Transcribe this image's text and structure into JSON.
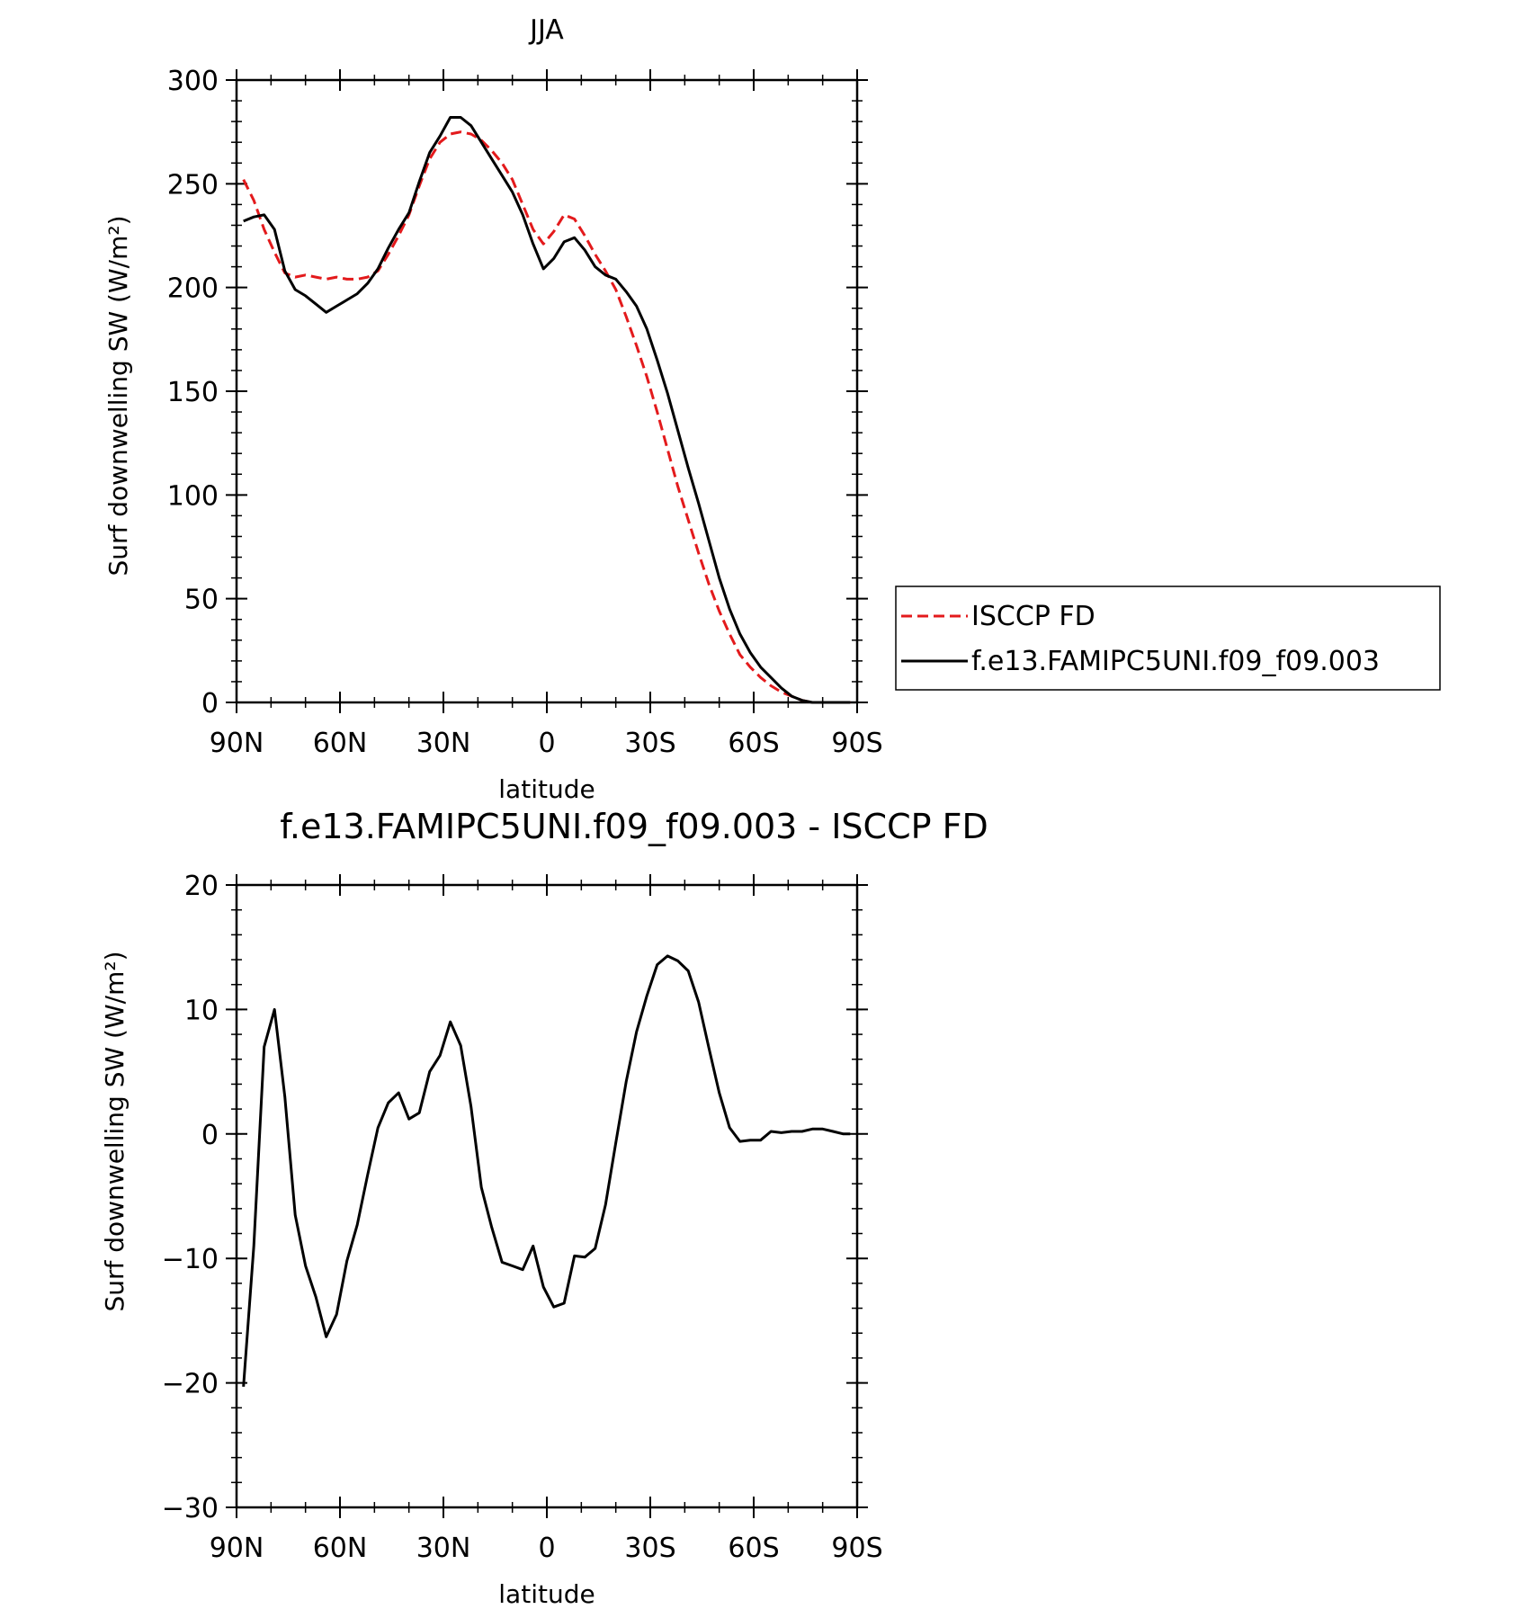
{
  "chart_data": [
    {
      "type": "line",
      "title": "JJA",
      "xlabel": "latitude",
      "ylabel": "Surf downwelling SW (W/m²)",
      "x_ticks": [
        90,
        60,
        30,
        0,
        -30,
        -60,
        -90
      ],
      "x_tick_labels": [
        "90N",
        "60N",
        "30N",
        "0",
        "30S",
        "60S",
        "90S"
      ],
      "xlim": [
        90,
        -90
      ],
      "ylim": [
        0,
        300
      ],
      "y_ticks": [
        0,
        50,
        100,
        150,
        200,
        250,
        300
      ],
      "y_tick_labels": [
        "0",
        "50",
        "100",
        "150",
        "200",
        "250",
        "300"
      ],
      "grid": false,
      "legend_position": "right",
      "series": [
        {
          "name": "ISCCP FD",
          "color": "#e31a1c",
          "dash": "dashed",
          "x": [
            88,
            85,
            82,
            79,
            76,
            73,
            70,
            67,
            64,
            61,
            58,
            55,
            52,
            49,
            46,
            43,
            40,
            37,
            34,
            31,
            28,
            25,
            22,
            19,
            16,
            13,
            10,
            7,
            4,
            1,
            -2,
            -5,
            -8,
            -11,
            -14,
            -17,
            -20,
            -23,
            -26,
            -29,
            -32,
            -35,
            -38,
            -41,
            -44,
            -47,
            -50,
            -53,
            -56,
            -59,
            -62,
            -65,
            -68,
            -71,
            -74,
            -77,
            -80,
            -83,
            -86,
            -88
          ],
          "y": [
            252,
            242,
            228,
            217,
            207,
            205,
            206,
            205,
            204,
            205,
            204,
            204,
            205,
            208,
            216,
            225,
            235,
            249,
            262,
            270,
            274,
            275,
            274,
            271,
            266,
            260,
            252,
            240,
            228,
            221,
            227,
            235,
            233,
            225,
            216,
            208,
            199,
            186,
            172,
            157,
            140,
            122,
            104,
            88,
            72,
            57,
            44,
            33,
            23,
            17,
            12,
            8,
            5,
            3,
            1,
            0,
            0,
            0,
            0,
            0
          ]
        },
        {
          "name": "f.e13.FAMIPC5UNI.f09_f09.003",
          "color": "#000000",
          "dash": "solid",
          "x": [
            88,
            85,
            82,
            79,
            76,
            73,
            70,
            67,
            64,
            61,
            58,
            55,
            52,
            49,
            46,
            43,
            40,
            37,
            34,
            31,
            28,
            25,
            22,
            19,
            16,
            13,
            10,
            7,
            4,
            1,
            -2,
            -5,
            -8,
            -11,
            -14,
            -17,
            -20,
            -23,
            -26,
            -29,
            -32,
            -35,
            -38,
            -41,
            -44,
            -47,
            -50,
            -53,
            -56,
            -59,
            -62,
            -65,
            -68,
            -71,
            -74,
            -77,
            -80,
            -83,
            -86,
            -88
          ],
          "y": [
            232,
            234,
            235,
            228,
            208,
            199,
            196,
            192,
            188,
            191,
            194,
            197,
            202,
            209,
            219,
            228,
            236,
            251,
            265,
            273,
            282,
            282,
            278,
            270,
            262,
            254,
            246,
            235,
            221,
            209,
            214,
            222,
            224,
            218,
            210,
            206,
            204,
            198,
            191,
            180,
            165,
            149,
            131,
            113,
            96,
            78,
            60,
            45,
            33,
            24,
            17,
            12,
            7,
            3,
            1,
            0,
            0,
            0,
            0,
            0
          ]
        }
      ]
    },
    {
      "type": "line",
      "title": "f.e13.FAMIPC5UNI.f09_f09.003 - ISCCP FD",
      "xlabel": "latitude",
      "ylabel": "Surf downwelling SW (W/m²)",
      "x_ticks": [
        90,
        60,
        30,
        0,
        -30,
        -60,
        -90
      ],
      "x_tick_labels": [
        "90N",
        "60N",
        "30N",
        "0",
        "30S",
        "60S",
        "90S"
      ],
      "xlim": [
        90,
        -90
      ],
      "ylim": [
        -30,
        20
      ],
      "y_ticks": [
        -30,
        -20,
        -10,
        0,
        10,
        20
      ],
      "y_tick_labels": [
        "−30",
        "−20",
        "−10",
        "0",
        "10",
        "20"
      ],
      "grid": false,
      "series": [
        {
          "color": "#000000",
          "dash": "solid",
          "x": [
            88,
            85,
            82,
            79,
            76,
            73,
            70,
            67,
            64,
            61,
            58,
            55,
            52,
            49,
            46,
            43,
            40,
            37,
            34,
            31,
            28,
            25,
            22,
            19,
            16,
            13,
            10,
            7,
            4,
            1,
            -2,
            -5,
            -8,
            -11,
            -14,
            -17,
            -20,
            -23,
            -26,
            -29,
            -32,
            -35,
            -38,
            -41,
            -44,
            -47,
            -50,
            -53,
            -56,
            -59,
            -62,
            -65,
            -68,
            -71,
            -74,
            -77,
            -80,
            -83,
            -86,
            -88
          ],
          "y": [
            -20.3,
            -9,
            7,
            10,
            3,
            -6.5,
            -10.6,
            -13.1,
            -16.3,
            -14.5,
            -10.2,
            -7.3,
            -3.3,
            0.5,
            2.5,
            3.3,
            1.2,
            1.7,
            5,
            6.3,
            9,
            7.1,
            2.2,
            -4.3,
            -7.5,
            -10.3,
            -10.6,
            -10.9,
            -9,
            -12.3,
            -13.9,
            -13.6,
            -9.8,
            -9.9,
            -9.2,
            -5.7,
            -0.7,
            4.2,
            8.2,
            11.1,
            13.6,
            14.3,
            13.9,
            13.1,
            10.6,
            6.9,
            3.3,
            0.5,
            -0.6,
            -0.5,
            -0.5,
            0.2,
            0.1,
            0.2,
            0.2,
            0.4,
            0.4,
            0.2,
            0,
            0
          ]
        }
      ]
    }
  ]
}
